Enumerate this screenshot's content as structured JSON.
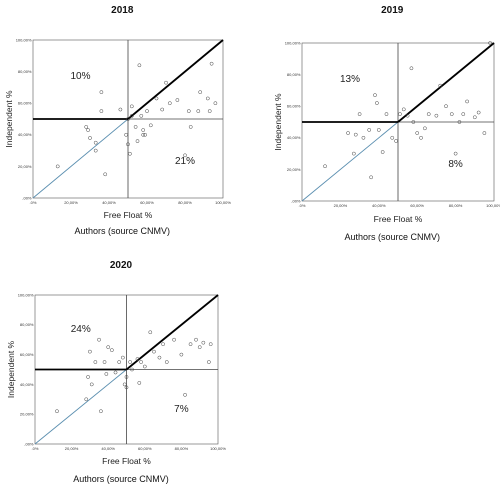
{
  "chart_data": [
    {
      "type": "scatter",
      "title": "2018",
      "xlabel": "Free Float %",
      "ylabel": "Independent %",
      "source": "Authors (source CNMV)",
      "xlim": [
        0,
        100
      ],
      "ylim": [
        0,
        100
      ],
      "x_ticks": [
        ".0%",
        "20,00%",
        "40,00%",
        "60,00%",
        "80,00%",
        "100,00%"
      ],
      "y_ticks": [
        ",00%",
        "20,00%",
        "40,00%",
        "60,00%",
        "80,00%",
        "100,00%"
      ],
      "threshold": {
        "x": 50,
        "y": 50
      },
      "annotations": [
        {
          "text": "10%",
          "quadrant": "top-left"
        },
        {
          "text": "21%",
          "quadrant": "bottom-right"
        }
      ],
      "x": [
        13,
        28,
        29,
        30,
        33,
        33,
        36,
        36,
        38,
        46,
        49,
        50,
        50,
        51,
        52,
        52,
        54,
        55,
        56,
        57,
        58,
        58,
        59,
        60,
        62,
        65,
        68,
        70,
        72,
        76,
        80,
        82,
        83,
        87,
        88,
        92,
        93,
        94,
        96
      ],
      "y": [
        20,
        45,
        43,
        38,
        30,
        35,
        67,
        55,
        15,
        56,
        40,
        50,
        34,
        28,
        58,
        52,
        45,
        36,
        84,
        52,
        43,
        40,
        40,
        55,
        46,
        63,
        56,
        73,
        60,
        62,
        27,
        55,
        45,
        55,
        67,
        63,
        55,
        85,
        60
      ]
    },
    {
      "type": "scatter",
      "title": "2019",
      "xlabel": "Free Float %",
      "ylabel": "Independent %",
      "source": "Authors (source CNMV)",
      "xlim": [
        0,
        100
      ],
      "ylim": [
        0,
        100
      ],
      "x_ticks": [
        ".0%",
        "20,00%",
        "40,00%",
        "60,00%",
        "80,00%",
        "100,00%"
      ],
      "y_ticks": [
        ",00%",
        "20,00%",
        "40,00%",
        "60,00%",
        "80,00%",
        "100,00%"
      ],
      "threshold": {
        "x": 50,
        "y": 50
      },
      "annotations": [
        {
          "text": "13%",
          "quadrant": "top-left"
        },
        {
          "text": "8%",
          "quadrant": "bottom-right"
        }
      ],
      "x": [
        12,
        24,
        27,
        28,
        30,
        32,
        35,
        36,
        38,
        39,
        40,
        42,
        44,
        47,
        49,
        51,
        53,
        55,
        57,
        58,
        60,
        62,
        64,
        66,
        70,
        72,
        75,
        78,
        80,
        82,
        84,
        86,
        90,
        92,
        95,
        98
      ],
      "y": [
        22,
        43,
        30,
        42,
        55,
        40,
        45,
        15,
        67,
        62,
        45,
        31,
        55,
        40,
        38,
        55,
        58,
        54,
        84,
        50,
        43,
        40,
        46,
        55,
        54,
        73,
        60,
        55,
        30,
        50,
        55,
        63,
        53,
        56,
        43,
        100
      ]
    },
    {
      "type": "scatter",
      "title": "2020",
      "xlabel": "Free Float %",
      "ylabel": "Independent %",
      "source": "Authors (source CNMV)",
      "xlim": [
        0,
        100
      ],
      "ylim": [
        0,
        100
      ],
      "x_ticks": [
        ".0%",
        "20,00%",
        "40,00%",
        "60,00%",
        "80,00%",
        "100,00%"
      ],
      "y_ticks": [
        ",00%",
        "20,00%",
        "40,00%",
        "60,00%",
        "80,00%",
        "100,00%"
      ],
      "threshold": {
        "x": 50,
        "y": 50
      },
      "annotations": [
        {
          "text": "24%",
          "quadrant": "top-left"
        },
        {
          "text": "7%",
          "quadrant": "bottom-right"
        }
      ],
      "x": [
        12,
        28,
        29,
        30,
        31,
        33,
        35,
        36,
        38,
        39,
        40,
        42,
        44,
        46,
        48,
        49,
        50,
        50,
        52,
        53,
        56,
        57,
        58,
        60,
        63,
        65,
        68,
        70,
        72,
        76,
        80,
        82,
        85,
        88,
        90,
        92,
        95,
        96
      ],
      "y": [
        22,
        30,
        45,
        62,
        40,
        55,
        70,
        22,
        55,
        47,
        65,
        63,
        48,
        55,
        58,
        40,
        45,
        38,
        55,
        50,
        57,
        41,
        55,
        52,
        75,
        62,
        58,
        67,
        55,
        70,
        60,
        33,
        67,
        70,
        65,
        68,
        55,
        67
      ]
    }
  ]
}
